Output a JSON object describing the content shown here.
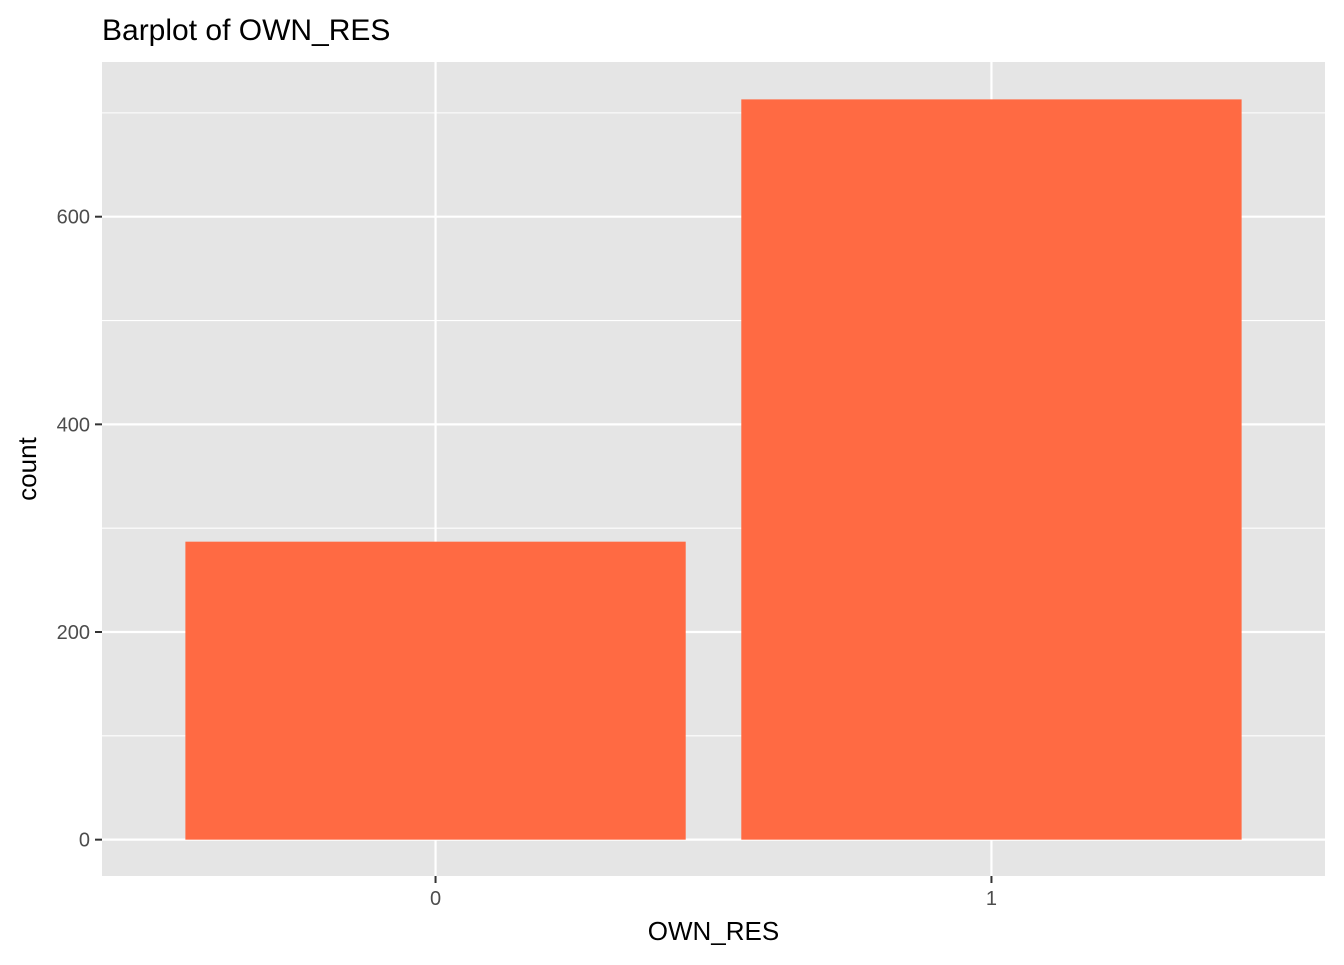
{
  "chart_data": {
    "type": "bar",
    "title": "Barplot of OWN_RES",
    "xlabel": "OWN_RES",
    "ylabel": "count",
    "categories": [
      "0",
      "1"
    ],
    "values": [
      287,
      713
    ],
    "ylim": [
      -35,
      749
    ],
    "yticks": [
      0,
      200,
      400,
      600
    ],
    "grid": true,
    "colors": {
      "bar": "#FF6A43",
      "panel": "#E5E5E5",
      "grid": "#FFFFFF",
      "text": "#000000",
      "tick_text": "#4D4D4D",
      "tick_mark": "#333333"
    }
  }
}
